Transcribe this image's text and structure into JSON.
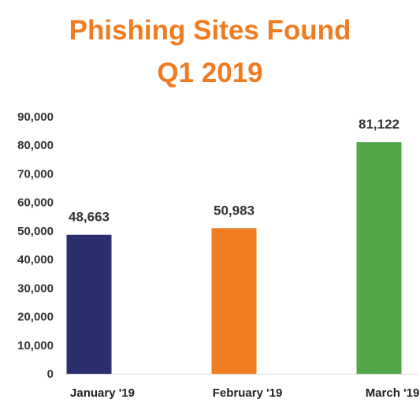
{
  "chart_data": {
    "type": "bar",
    "title_lines": [
      "Phishing Sites Found",
      "Q1 2019"
    ],
    "categories": [
      "January '19",
      "February '19",
      "March '19"
    ],
    "values": [
      48663,
      50983,
      81122
    ],
    "value_labels": [
      "48,663",
      "50,983",
      "81,122"
    ],
    "colors": [
      "#2b2f6e",
      "#f07c21",
      "#53a647"
    ],
    "title_color": "#f07c21",
    "ylim": [
      0,
      90000
    ],
    "yticks": [
      0,
      10000,
      20000,
      30000,
      40000,
      50000,
      60000,
      70000,
      80000,
      90000
    ],
    "ytick_labels": [
      "0",
      "10,000",
      "20,000",
      "30,000",
      "40,000",
      "50,000",
      "60,000",
      "70,000",
      "80,000",
      "90,000"
    ],
    "xlabel": "",
    "ylabel": "",
    "grid": false,
    "legend": "none"
  }
}
